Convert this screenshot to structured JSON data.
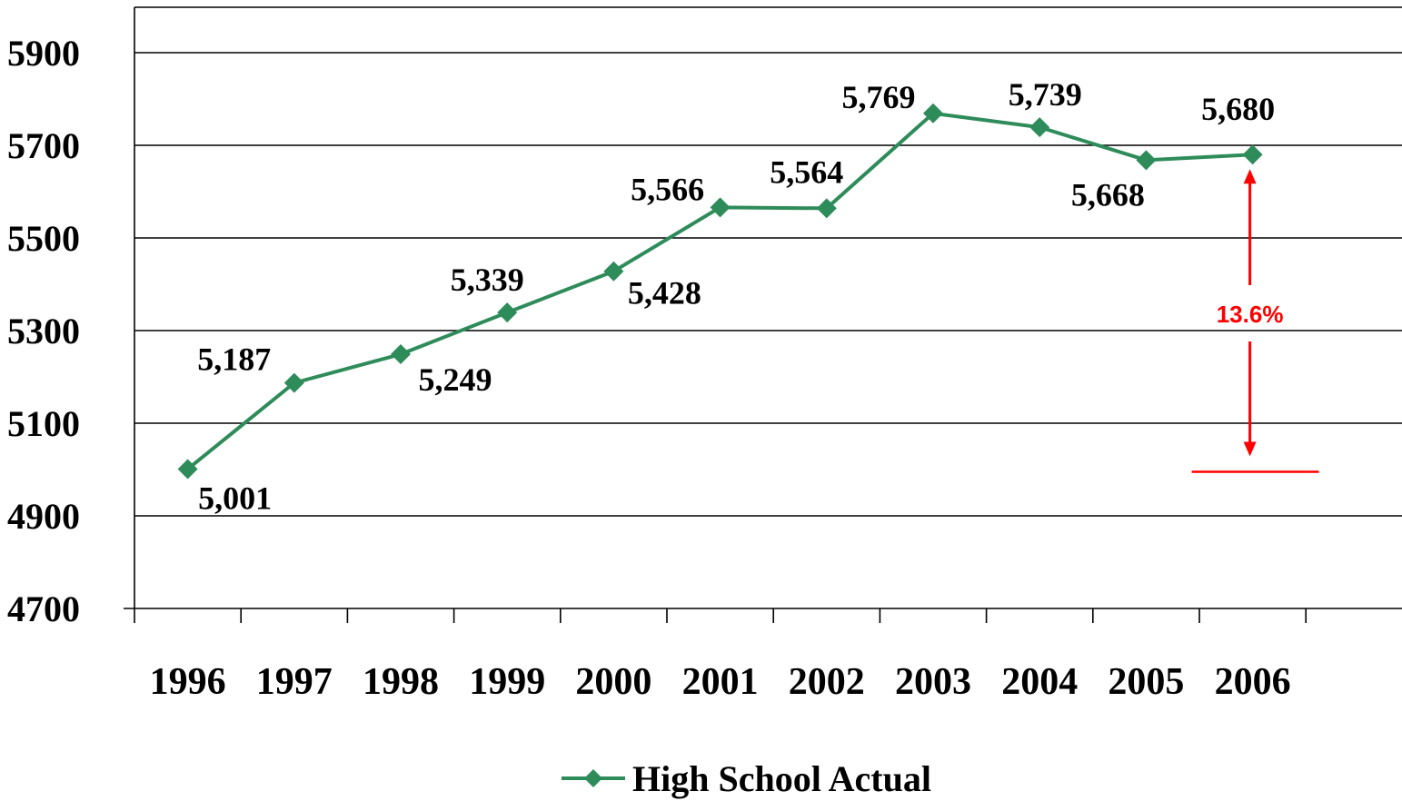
{
  "chart_data": {
    "type": "line",
    "categories": [
      "1996",
      "1997",
      "1998",
      "1999",
      "2000",
      "2001",
      "2002",
      "2003",
      "2004",
      "2005",
      "2006"
    ],
    "series": [
      {
        "name": "High School Actual",
        "values": [
          5001,
          5187,
          5249,
          5339,
          5428,
          5566,
          5564,
          5769,
          5739,
          5668,
          5680
        ],
        "labels": [
          "5,001",
          "5,187",
          "5,249",
          "5,339",
          "5,428",
          "5,566",
          "5,564",
          "5,769",
          "5,739",
          "5,668",
          "5,680"
        ],
        "color": "#2e8b5a"
      }
    ],
    "ylim": [
      4700,
      6000
    ],
    "yticks": [
      "4700",
      "4900",
      "5100",
      "5300",
      "5500",
      "5700",
      "5900"
    ],
    "ytick_values": [
      4700,
      4900,
      5100,
      5300,
      5500,
      5700,
      5900
    ],
    "grid": true,
    "legend_position": "bottom-center",
    "annotation": {
      "text": "13.6%",
      "color": "#ff0000",
      "from_value": 5001,
      "to_value": 5680,
      "at_category": "2006"
    }
  }
}
